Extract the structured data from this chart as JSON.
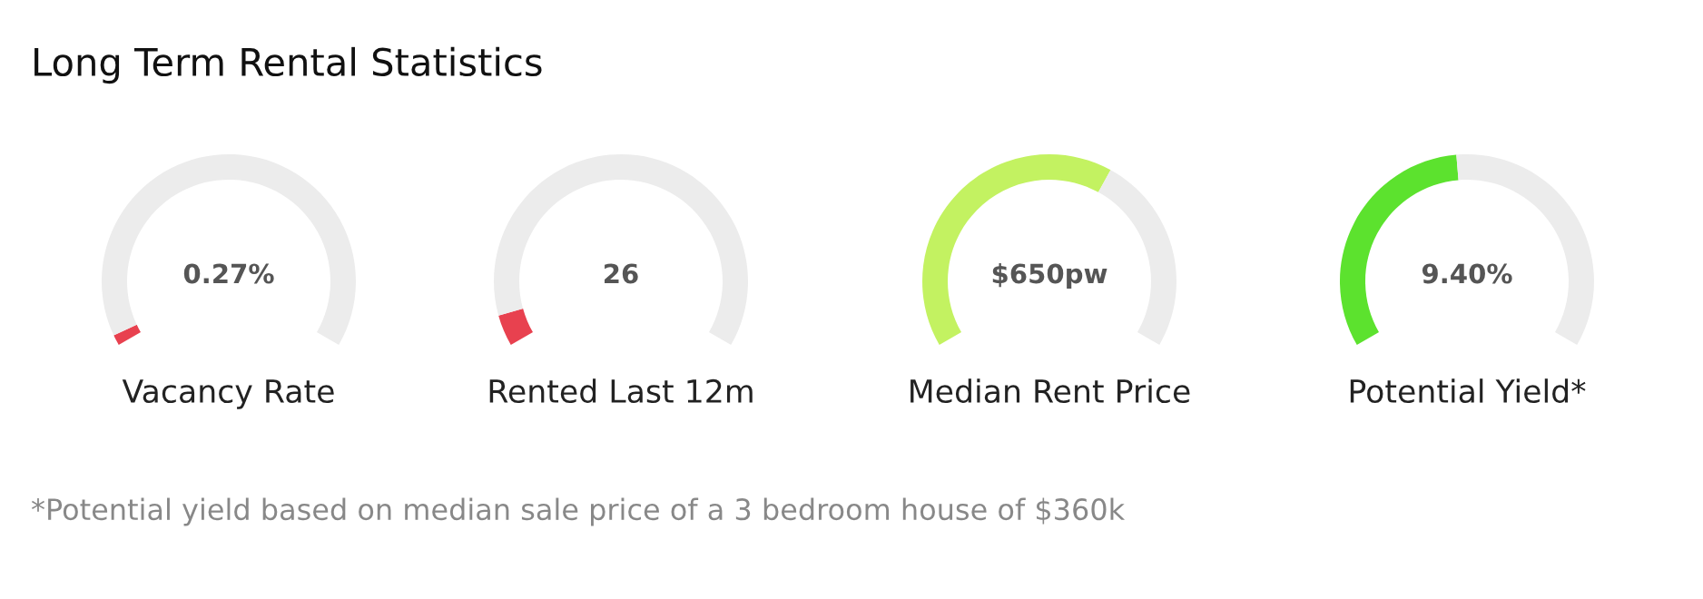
{
  "chart_data": [
    {
      "type": "other",
      "title": "Long Term Rental Statistics",
      "annotations": [
        "*Potential yield based on median sale price of a 3 bedroom house of $360k"
      ]
    },
    {
      "type": "donut",
      "xlabel": "Vacancy Rate",
      "annotations": [
        "0.27%"
      ],
      "categories": [
        null,
        null
      ],
      "values": [
        2,
        98
      ],
      "colors": [
        "#e8414f",
        "#ececec"
      ]
    },
    {
      "type": "donut",
      "xlabel": "Rented Last 12m",
      "annotations": [
        "26"
      ],
      "categories": [
        null,
        null
      ],
      "values": [
        6,
        94
      ],
      "colors": [
        "#e8414f",
        "#ececec"
      ]
    },
    {
      "type": "donut",
      "xlabel": "Median Rent Price",
      "annotations": [
        "$650pw"
      ],
      "categories": [
        null,
        null
      ],
      "values": [
        62,
        38
      ],
      "colors": [
        "#c3f261",
        "#ececec"
      ]
    },
    {
      "type": "donut",
      "xlabel": "Potential Yield*",
      "annotations": [
        "9.40%"
      ],
      "categories": [
        null,
        null
      ],
      "values": [
        48,
        52
      ],
      "colors": [
        "#5ce22e",
        "#ececec"
      ]
    }
  ]
}
